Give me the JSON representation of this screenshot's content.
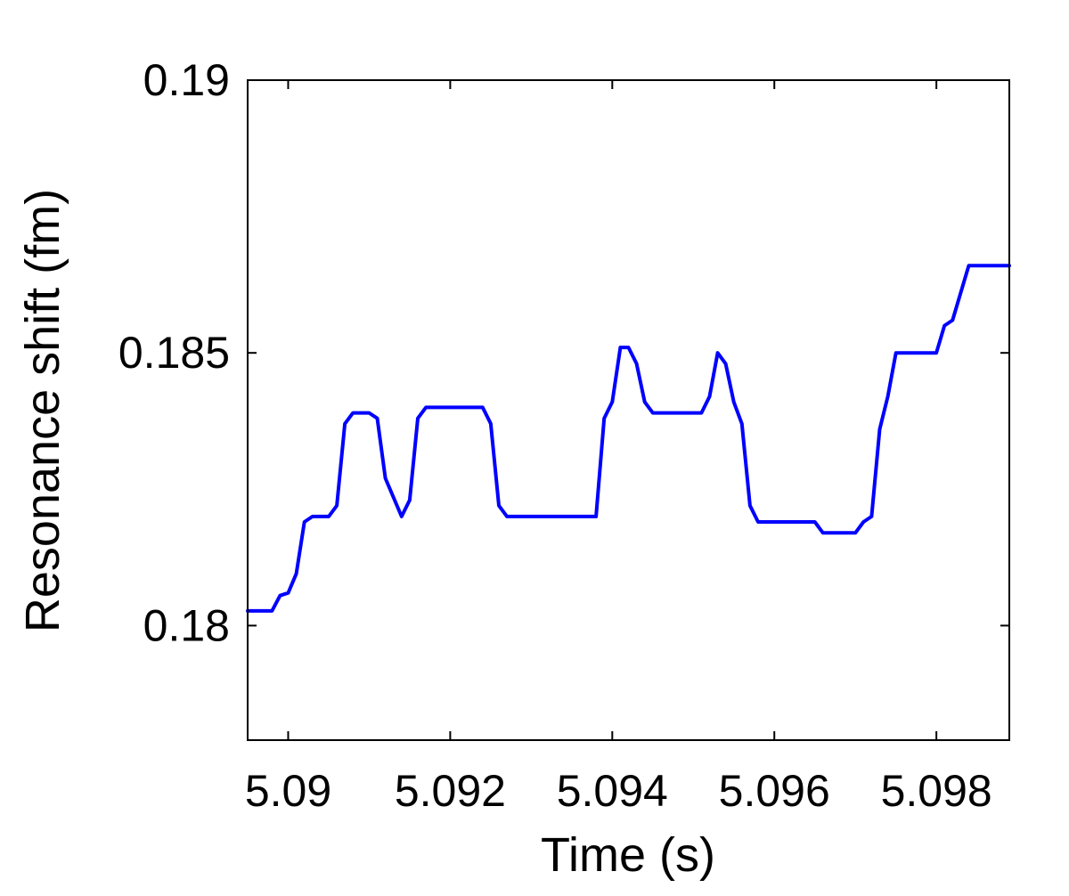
{
  "chart_data": {
    "type": "line",
    "title": "",
    "xlabel": "Time (s)",
    "ylabel": "Resonance shift (fm)",
    "xlim": [
      5.0895,
      5.0989
    ],
    "ylim": [
      0.1779,
      0.19
    ],
    "xticks": [
      5.09,
      5.092,
      5.094,
      5.096,
      5.098
    ],
    "xtick_labels": [
      "5.09",
      "5.092",
      "5.094",
      "5.096",
      "5.098"
    ],
    "yticks": [
      0.18,
      0.185,
      0.19
    ],
    "ytick_labels": [
      "0.18",
      "0.185",
      "0.19"
    ],
    "grid": false,
    "legend": "none",
    "series": [
      {
        "color": "#0000ff",
        "x": [
          5.0895,
          5.0898,
          5.0899,
          5.09,
          5.0901,
          5.0902,
          5.0903,
          5.0905,
          5.0906,
          5.0907,
          5.0908,
          5.091,
          5.0911,
          5.0912,
          5.0914,
          5.0915,
          5.0916,
          5.0917,
          5.0918,
          5.0919,
          5.092,
          5.0924,
          5.0925,
          5.0926,
          5.0927,
          5.0929,
          5.0938,
          5.0939,
          5.094,
          5.0941,
          5.0942,
          5.0943,
          5.0944,
          5.0945,
          5.0946,
          5.0951,
          5.0952,
          5.0953,
          5.0954,
          5.0955,
          5.0956,
          5.0957,
          5.0958,
          5.0959,
          5.096,
          5.0965,
          5.0966,
          5.097,
          5.0971,
          5.0972,
          5.0973,
          5.0974,
          5.0975,
          5.0976,
          5.098,
          5.0981,
          5.0982,
          5.0983,
          5.0984,
          5.0985,
          5.0989
        ],
        "y": [
          0.18027,
          0.18027,
          0.18055,
          0.1806,
          0.18095,
          0.1819,
          0.182,
          0.182,
          0.1822,
          0.1837,
          0.1839,
          0.1839,
          0.1838,
          0.1827,
          0.182,
          0.1823,
          0.1838,
          0.184,
          0.184,
          0.184,
          0.184,
          0.184,
          0.1837,
          0.1822,
          0.182,
          0.182,
          0.182,
          0.1838,
          0.1841,
          0.1851,
          0.1851,
          0.1848,
          0.1841,
          0.1839,
          0.1839,
          0.1839,
          0.1842,
          0.185,
          0.1848,
          0.1841,
          0.1837,
          0.1822,
          0.1819,
          0.1819,
          0.1819,
          0.1819,
          0.1817,
          0.1817,
          0.1819,
          0.182,
          0.1836,
          0.1842,
          0.185,
          0.185,
          0.185,
          0.1855,
          0.1856,
          0.1861,
          0.1866,
          0.1866,
          0.1866
        ]
      }
    ]
  }
}
